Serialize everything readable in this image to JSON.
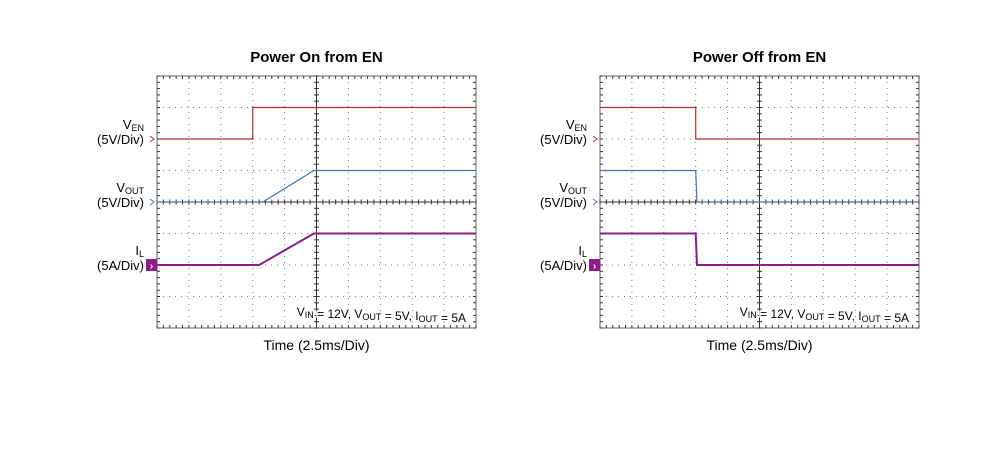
{
  "colors": {
    "ven": "#b22f2f",
    "vout": "#3f74b0",
    "il": "#8e1a8e",
    "grid": "#555555",
    "frame": "#666666"
  },
  "chart_data": [
    {
      "type": "line",
      "title": "Power On from EN",
      "xlabel": "Time (2.5ms/Div)",
      "annotation": "V_IN = 12V, V_OUT = 5V, I_OUT = 5A",
      "xlim": [
        0,
        25
      ],
      "x_unit": "ms",
      "grid": true,
      "series": [
        {
          "name": "V_EN",
          "scale": "(5V/Div)",
          "points": [
            [
              0,
              0
            ],
            [
              7.5,
              0
            ],
            [
              7.5,
              5
            ],
            [
              25,
              5
            ]
          ]
        },
        {
          "name": "V_OUT",
          "scale": "(5V/Div)",
          "points": [
            [
              0,
              0
            ],
            [
              8.3,
              0
            ],
            [
              12.3,
              5
            ],
            [
              25,
              5
            ]
          ]
        },
        {
          "name": "I_L",
          "scale": "(5A/Div)",
          "points": [
            [
              0,
              0
            ],
            [
              8.0,
              0
            ],
            [
              12.3,
              5
            ],
            [
              25,
              5
            ]
          ]
        }
      ]
    },
    {
      "type": "line",
      "title": "Power Off from EN",
      "xlabel": "Time (2.5ms/Div)",
      "annotation": "V_IN = 12V, V_OUT = 5V, I_OUT = 5A",
      "xlim": [
        0,
        25
      ],
      "x_unit": "ms",
      "grid": true,
      "series": [
        {
          "name": "V_EN",
          "scale": "(5V/Div)",
          "points": [
            [
              0,
              5
            ],
            [
              7.5,
              5
            ],
            [
              7.5,
              0
            ],
            [
              25,
              0
            ]
          ]
        },
        {
          "name": "V_OUT",
          "scale": "(5V/Div)",
          "points": [
            [
              0,
              5
            ],
            [
              7.5,
              5
            ],
            [
              7.6,
              0
            ],
            [
              25,
              0
            ]
          ]
        },
        {
          "name": "I_L",
          "scale": "(5A/Div)",
          "points": [
            [
              0,
              5
            ],
            [
              7.5,
              5
            ],
            [
              7.6,
              0
            ],
            [
              25,
              0
            ]
          ]
        }
      ]
    }
  ]
}
